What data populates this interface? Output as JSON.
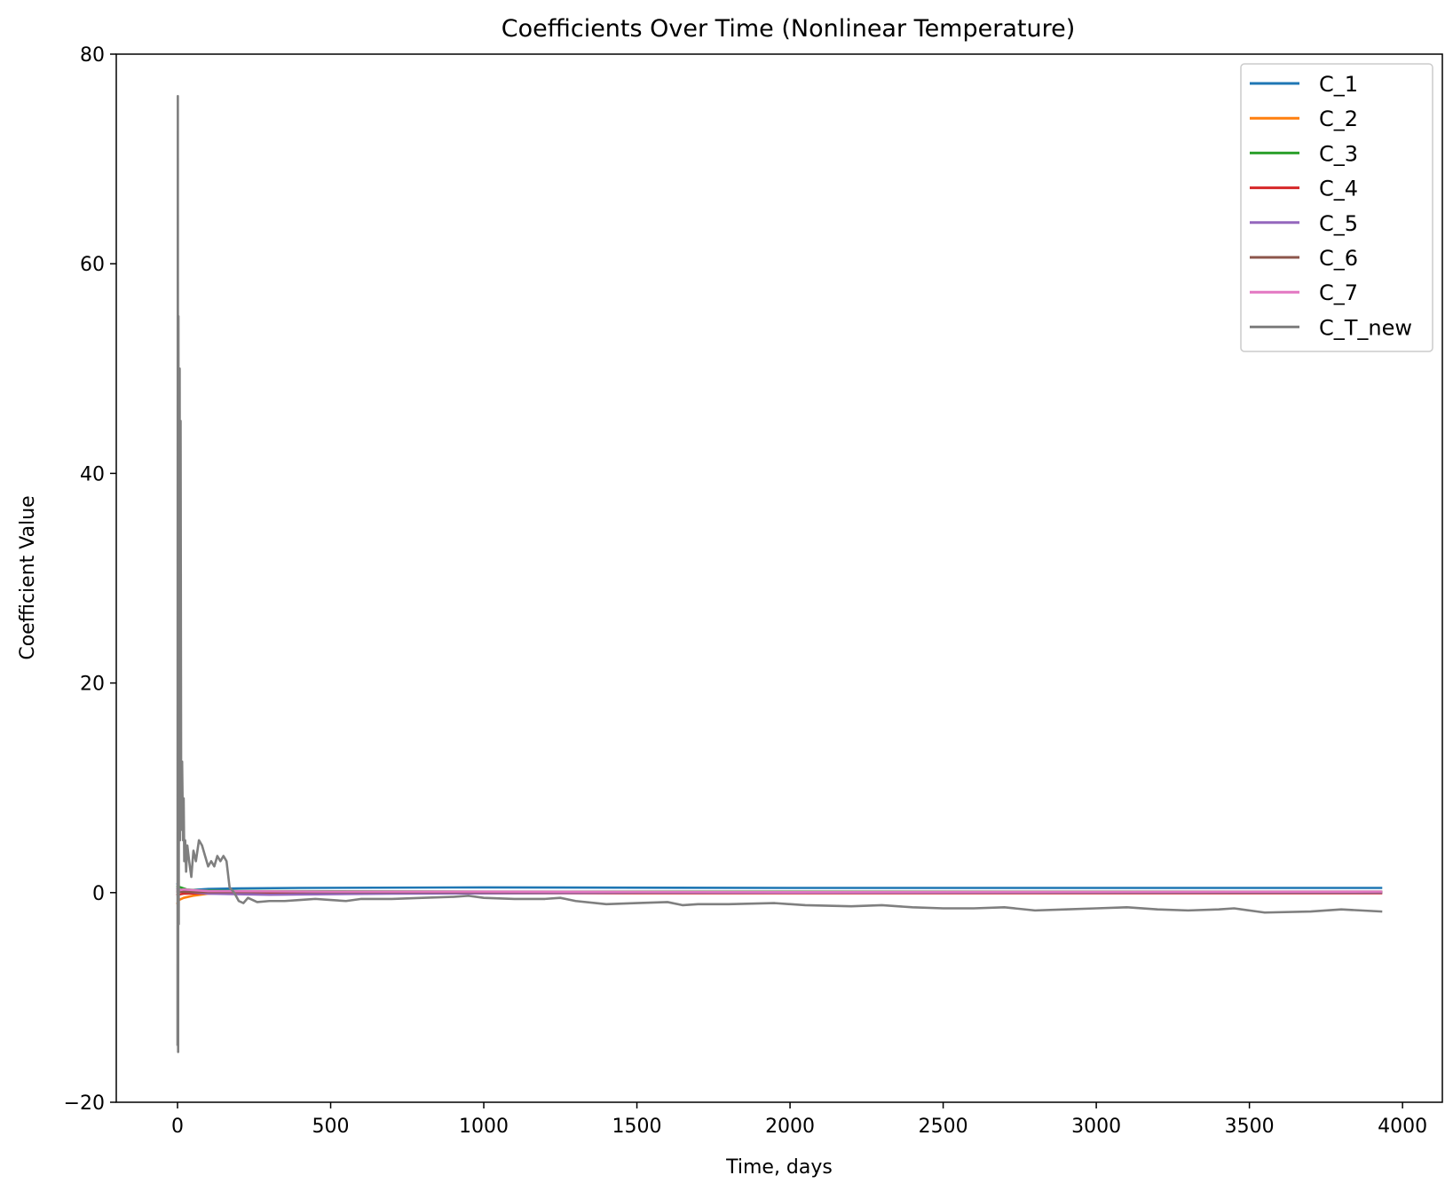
{
  "chart_data": {
    "type": "line",
    "title": "Coefficients Over Time (Nonlinear Temperature)",
    "xlabel": "Time, days",
    "ylabel": "Coefficient Value",
    "xlim": [
      -200,
      4130
    ],
    "ylim": [
      -20,
      80
    ],
    "x_ticks": [
      0,
      500,
      1000,
      1500,
      2000,
      2500,
      3000,
      3500,
      4000
    ],
    "y_ticks": [
      -20,
      0,
      20,
      40,
      60,
      80
    ],
    "grid": false,
    "legend_position": "upper right",
    "series": [
      {
        "name": "C_1",
        "color": "#1f77b4",
        "points": [
          [
            0,
            0.8
          ],
          [
            5,
            0.2
          ],
          [
            20,
            0.1
          ],
          [
            50,
            0.25
          ],
          [
            100,
            0.35
          ],
          [
            200,
            0.4
          ],
          [
            400,
            0.45
          ],
          [
            1000,
            0.5
          ],
          [
            2000,
            0.45
          ],
          [
            3000,
            0.45
          ],
          [
            3930,
            0.45
          ]
        ]
      },
      {
        "name": "C_2",
        "color": "#ff7f0e",
        "points": [
          [
            0,
            -1.0
          ],
          [
            5,
            -0.7
          ],
          [
            20,
            -0.5
          ],
          [
            50,
            -0.3
          ],
          [
            100,
            -0.1
          ],
          [
            200,
            0.0
          ],
          [
            1000,
            0.05
          ],
          [
            2000,
            0.05
          ],
          [
            3930,
            0.05
          ]
        ]
      },
      {
        "name": "C_3",
        "color": "#2ca02c",
        "points": [
          [
            0,
            0.6
          ],
          [
            10,
            0.5
          ],
          [
            30,
            0.3
          ],
          [
            80,
            0.2
          ],
          [
            200,
            0.15
          ],
          [
            1000,
            0.1
          ],
          [
            2000,
            0.1
          ],
          [
            3930,
            0.1
          ]
        ]
      },
      {
        "name": "C_4",
        "color": "#d62728",
        "points": [
          [
            0,
            -0.2
          ],
          [
            20,
            -0.1
          ],
          [
            100,
            -0.05
          ],
          [
            500,
            -0.05
          ],
          [
            1500,
            -0.05
          ],
          [
            3000,
            -0.05
          ],
          [
            3930,
            -0.05
          ]
        ]
      },
      {
        "name": "C_5",
        "color": "#9467bd",
        "points": [
          [
            0,
            0.4
          ],
          [
            20,
            0.1
          ],
          [
            100,
            -0.1
          ],
          [
            300,
            -0.2
          ],
          [
            700,
            -0.1
          ],
          [
            1500,
            0.0
          ],
          [
            3930,
            0.0
          ]
        ]
      },
      {
        "name": "C_6",
        "color": "#8c564b",
        "points": [
          [
            0,
            0.1
          ],
          [
            50,
            0.05
          ],
          [
            500,
            0.05
          ],
          [
            2000,
            0.05
          ],
          [
            3930,
            0.05
          ]
        ]
      },
      {
        "name": "C_7",
        "color": "#e377c2",
        "points": [
          [
            0,
            0.2
          ],
          [
            20,
            0.3
          ],
          [
            100,
            0.15
          ],
          [
            500,
            0.1
          ],
          [
            1000,
            0.1
          ],
          [
            2000,
            0.05
          ],
          [
            3930,
            0.1
          ]
        ]
      },
      {
        "name": "C_T_new",
        "color": "#7f7f7f",
        "points": [
          [
            0,
            -14.5
          ],
          [
            1,
            76
          ],
          [
            2,
            -15.2
          ],
          [
            3,
            55
          ],
          [
            4,
            -3
          ],
          [
            5,
            40
          ],
          [
            6,
            15
          ],
          [
            7,
            50
          ],
          [
            8,
            5
          ],
          [
            10,
            45
          ],
          [
            12,
            6
          ],
          [
            15,
            12.5
          ],
          [
            18,
            5
          ],
          [
            20,
            9
          ],
          [
            22,
            3
          ],
          [
            25,
            5
          ],
          [
            28,
            2
          ],
          [
            32,
            4.5
          ],
          [
            38,
            3
          ],
          [
            45,
            1.5
          ],
          [
            52,
            4
          ],
          [
            60,
            3
          ],
          [
            70,
            5
          ],
          [
            80,
            4.5
          ],
          [
            90,
            3.5
          ],
          [
            100,
            2.5
          ],
          [
            110,
            3
          ],
          [
            120,
            2.5
          ],
          [
            130,
            3.5
          ],
          [
            140,
            3
          ],
          [
            150,
            3.5
          ],
          [
            160,
            3
          ],
          [
            170,
            0.5
          ],
          [
            185,
            0
          ],
          [
            200,
            -0.8
          ],
          [
            215,
            -1.0
          ],
          [
            230,
            -0.5
          ],
          [
            260,
            -0.9
          ],
          [
            300,
            -0.8
          ],
          [
            350,
            -0.8
          ],
          [
            400,
            -0.7
          ],
          [
            450,
            -0.6
          ],
          [
            500,
            -0.7
          ],
          [
            550,
            -0.8
          ],
          [
            600,
            -0.6
          ],
          [
            700,
            -0.6
          ],
          [
            800,
            -0.5
          ],
          [
            900,
            -0.4
          ],
          [
            950,
            -0.3
          ],
          [
            1000,
            -0.5
          ],
          [
            1100,
            -0.6
          ],
          [
            1200,
            -0.6
          ],
          [
            1250,
            -0.5
          ],
          [
            1300,
            -0.8
          ],
          [
            1400,
            -1.1
          ],
          [
            1500,
            -1.0
          ],
          [
            1600,
            -0.9
          ],
          [
            1650,
            -1.2
          ],
          [
            1700,
            -1.1
          ],
          [
            1800,
            -1.1
          ],
          [
            1950,
            -1.0
          ],
          [
            2050,
            -1.2
          ],
          [
            2200,
            -1.3
          ],
          [
            2300,
            -1.2
          ],
          [
            2400,
            -1.4
          ],
          [
            2500,
            -1.5
          ],
          [
            2600,
            -1.5
          ],
          [
            2700,
            -1.4
          ],
          [
            2800,
            -1.7
          ],
          [
            2900,
            -1.6
          ],
          [
            3000,
            -1.5
          ],
          [
            3100,
            -1.4
          ],
          [
            3200,
            -1.6
          ],
          [
            3300,
            -1.7
          ],
          [
            3400,
            -1.6
          ],
          [
            3450,
            -1.5
          ],
          [
            3550,
            -1.9
          ],
          [
            3700,
            -1.8
          ],
          [
            3800,
            -1.6
          ],
          [
            3930,
            -1.8
          ]
        ]
      }
    ]
  }
}
